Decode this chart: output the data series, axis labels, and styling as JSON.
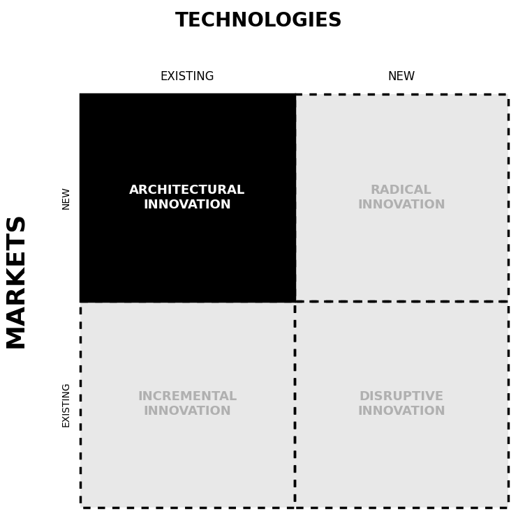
{
  "title": "TECHNOLOGIES",
  "title_fontsize": 20,
  "title_fontweight": "bold",
  "ylabel": "MARKETS",
  "ylabel_fontsize": 26,
  "ylabel_fontweight": "bold",
  "col_labels": [
    "EXISTING",
    "NEW"
  ],
  "row_labels": [
    "NEW",
    "EXISTING"
  ],
  "col_label_fontsize": 12,
  "row_label_fontsize": 10,
  "quadrants": [
    {
      "label": "ARCHITECTURAL\nINNOVATION",
      "bg_color": "#000000",
      "text_color": "#ffffff",
      "border_style": "solid",
      "border_color": "#000000",
      "row": 0,
      "col": 0
    },
    {
      "label": "RADICAL\nINNOVATION",
      "bg_color": "#e8e8e8",
      "text_color": "#b0b0b0",
      "border_style": "dashed",
      "border_color": "#000000",
      "row": 0,
      "col": 1
    },
    {
      "label": "INCREMENTAL\nINNOVATION",
      "bg_color": "#e8e8e8",
      "text_color": "#b0b0b0",
      "border_style": "dashed",
      "border_color": "#000000",
      "row": 1,
      "col": 0
    },
    {
      "label": "DISRUPTIVE\nINNOVATION",
      "bg_color": "#e8e8e8",
      "text_color": "#b0b0b0",
      "border_style": "dashed",
      "border_color": "#000000",
      "row": 1,
      "col": 1
    }
  ],
  "quadrant_fontsize": 13,
  "quadrant_fontweight": "bold",
  "bg_color": "#ffffff",
  "fig_width": 7.42,
  "fig_height": 7.43
}
